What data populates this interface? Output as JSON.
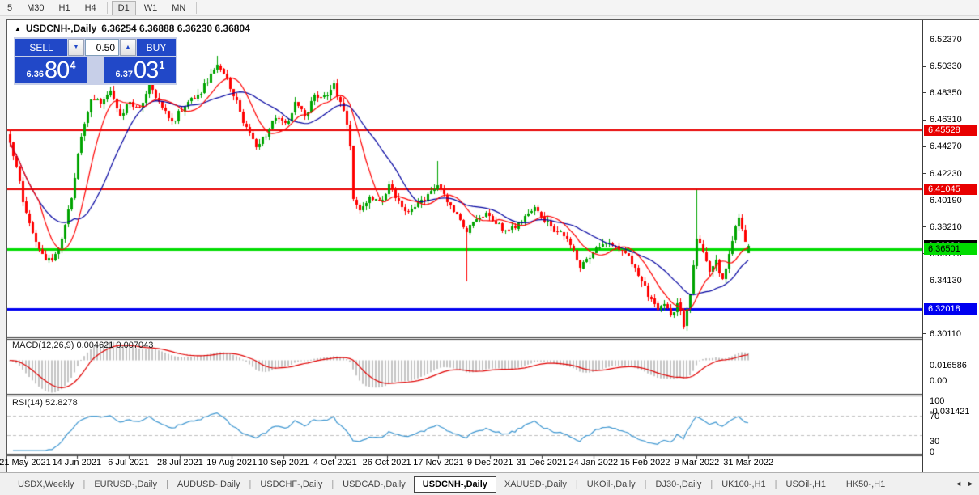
{
  "toolbar": {
    "timeframes": [
      "5",
      "M30",
      "H1",
      "H4",
      "D1",
      "W1",
      "MN"
    ],
    "active": "D1"
  },
  "chart_header": {
    "collapse_arrow": "▲",
    "symbol_label": "USDCNH-,Daily",
    "ohlc_text": "6.36254 6.36888 6.36230 6.36804"
  },
  "trade_panel": {
    "sell_label": "SELL",
    "buy_label": "BUY",
    "volume": "0.50",
    "sell_price": {
      "prefix": "6.36",
      "big": "80",
      "sup": "4"
    },
    "buy_price": {
      "prefix": "6.37",
      "big": "03",
      "sup": "1"
    }
  },
  "chart_data": {
    "type": "candlestick",
    "symbol": "USDCNH-",
    "timeframe": "Daily",
    "current_ohlc": {
      "open": 6.36254,
      "high": 6.36888,
      "low": 6.3623,
      "close": 6.36804
    },
    "y_ticks": [
      "6.52370",
      "6.50330",
      "6.48350",
      "6.46310",
      "6.44270",
      "6.42230",
      "6.40190",
      "6.38210",
      "6.36170",
      "6.34130",
      "6.30110"
    ],
    "x_labels": [
      "21 May 2021",
      "14 Jun 2021",
      "6 Jul 2021",
      "28 Jul 2021",
      "19 Aug 2021",
      "10 Sep 2021",
      "4 Oct 2021",
      "26 Oct 2021",
      "17 Nov 2021",
      "9 Dec 2021",
      "31 Dec 2021",
      "24 Jan 2022",
      "15 Feb 2022",
      "9 Mar 2022",
      "31 Mar 2022"
    ],
    "levels": [
      {
        "price": 6.45528,
        "label": "6.45528",
        "color": "#e80000",
        "text": "#ffffff",
        "width": 2
      },
      {
        "price": 6.41045,
        "label": "6.41045",
        "color": "#e80000",
        "text": "#ffffff",
        "width": 2
      },
      {
        "price": 6.36501,
        "label": "6.36501",
        "color": "#00dc00",
        "text": "#000000",
        "width": 3
      },
      {
        "price": 6.32018,
        "label": "6.32018",
        "color": "#0000f0",
        "text": "#ffffff",
        "width": 3
      }
    ],
    "current_price_marker": {
      "price": 6.36804,
      "label": "6.36804",
      "color": "#000000",
      "text": "#ffffff"
    },
    "price_path": [
      [
        0,
        6.448
      ],
      [
        2,
        6.428
      ],
      [
        4,
        6.401
      ],
      [
        7,
        6.376
      ],
      [
        10,
        6.36
      ],
      [
        13,
        6.3565
      ],
      [
        16,
        6.372
      ],
      [
        19,
        6.406
      ],
      [
        22,
        6.45
      ],
      [
        25,
        6.478
      ],
      [
        28,
        6.476
      ],
      [
        31,
        6.485
      ],
      [
        34,
        6.466
      ],
      [
        37,
        6.476
      ],
      [
        40,
        6.47
      ],
      [
        43,
        6.489
      ],
      [
        46,
        6.477
      ],
      [
        50,
        6.461
      ],
      [
        54,
        6.475
      ],
      [
        58,
        6.481
      ],
      [
        62,
        6.496
      ],
      [
        64,
        6.506
      ],
      [
        67,
        6.492
      ],
      [
        70,
        6.476
      ],
      [
        73,
        6.456
      ],
      [
        76,
        6.442
      ],
      [
        79,
        6.452
      ],
      [
        82,
        6.465
      ],
      [
        85,
        6.459
      ],
      [
        88,
        6.475
      ],
      [
        91,
        6.466
      ],
      [
        94,
        6.48
      ],
      [
        97,
        6.481
      ],
      [
        100,
        6.489
      ],
      [
        103,
        6.47
      ],
      [
        105,
        6.445
      ],
      [
        106,
        6.403
      ],
      [
        108,
        6.394
      ],
      [
        111,
        6.406
      ],
      [
        114,
        6.4
      ],
      [
        117,
        6.413
      ],
      [
        120,
        6.402
      ],
      [
        123,
        6.393
      ],
      [
        126,
        6.399
      ],
      [
        129,
        6.406
      ],
      [
        132,
        6.413
      ],
      [
        135,
        6.401
      ],
      [
        138,
        6.39
      ],
      [
        141,
        6.38
      ],
      [
        144,
        6.387
      ],
      [
        147,
        6.393
      ],
      [
        150,
        6.385
      ],
      [
        153,
        6.379
      ],
      [
        156,
        6.383
      ],
      [
        159,
        6.39
      ],
      [
        162,
        6.399
      ],
      [
        165,
        6.387
      ],
      [
        168,
        6.38
      ],
      [
        171,
        6.376
      ],
      [
        174,
        6.364
      ],
      [
        176,
        6.353
      ],
      [
        179,
        6.36
      ],
      [
        182,
        6.368
      ],
      [
        185,
        6.372
      ],
      [
        188,
        6.365
      ],
      [
        191,
        6.36
      ],
      [
        194,
        6.346
      ],
      [
        197,
        6.331
      ],
      [
        200,
        6.319
      ],
      [
        202,
        6.326
      ],
      [
        204,
        6.316
      ],
      [
        206,
        6.323
      ],
      [
        208,
        6.309
      ],
      [
        210,
        6.33
      ],
      [
        212,
        6.373
      ],
      [
        214,
        6.364
      ],
      [
        216,
        6.35
      ],
      [
        218,
        6.356
      ],
      [
        220,
        6.341
      ],
      [
        222,
        6.36
      ],
      [
        224,
        6.381
      ],
      [
        225,
        6.388
      ],
      [
        226,
        6.379
      ],
      [
        227,
        6.371
      ],
      [
        228,
        6.36804
      ]
    ],
    "wick_overrides": [
      {
        "i": 64,
        "high": 6.5115
      },
      {
        "i": 132,
        "high": 6.432
      },
      {
        "i": 141,
        "low": 6.341
      },
      {
        "i": 208,
        "low": 6.3045
      },
      {
        "i": 212,
        "high": 6.41
      },
      {
        "i": 225,
        "high": 6.392
      }
    ],
    "macd": {
      "name": "MACD(12,26,9)",
      "value": "0.004621",
      "signal": "0.007043",
      "y_ticks": [
        "0.016586",
        "0.00",
        "-0.031421"
      ]
    },
    "rsi": {
      "name": "RSI(14)",
      "value": "52.8278",
      "y_ticks": [
        "100",
        "70",
        "30",
        "0"
      ],
      "guides": [
        70,
        30
      ]
    },
    "colors": {
      "candle_up": "#00a400",
      "candle_down": "#ff0000",
      "ma_fast_red": "#ff0000",
      "ma_slow_blue": "#0000a0",
      "macd_hist": "#c4c4c4",
      "macd_signal": "#e00000",
      "rsi_line": "#3e97d1",
      "guide_dash": "#c0c0c0",
      "axis_line": "#3c3c3c"
    }
  },
  "bottom_tabs": {
    "tabs": [
      "USDX,Weekly",
      "EURUSD-,Daily",
      "AUDUSD-,Daily",
      "USDCHF-,Daily",
      "USDCAD-,Daily",
      "USDCNH-,Daily",
      "XAUUSD-,Daily",
      "UKOil-,Daily",
      "DJ30-,Daily",
      "UK100-,H1",
      "USOil-,H1",
      "HK50-,H1"
    ],
    "active_index": 5
  }
}
